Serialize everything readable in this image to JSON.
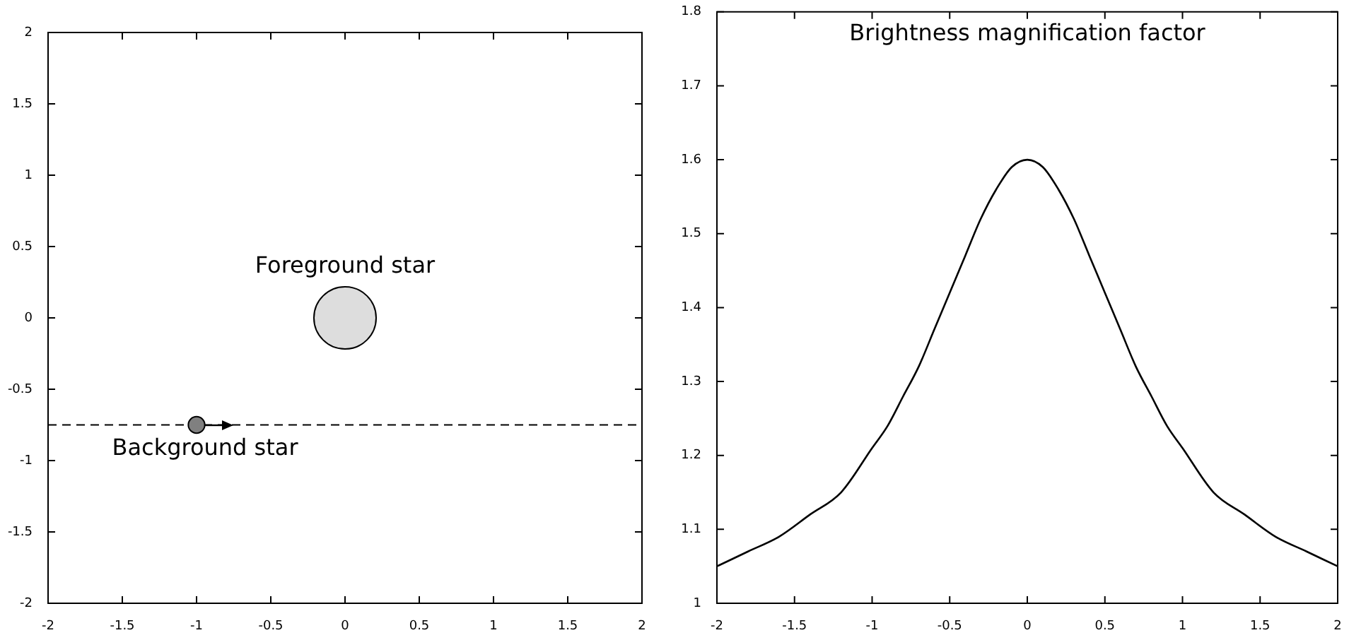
{
  "chart_data": [
    {
      "type": "bubble",
      "xlim": [
        -2,
        2
      ],
      "ylim": [
        -2,
        2
      ],
      "xticks": [
        -2,
        -1.5,
        -1,
        -0.5,
        0,
        0.5,
        1,
        1.5,
        2
      ],
      "yticks": [
        -2,
        -1.5,
        -1,
        -0.5,
        0,
        0.5,
        1,
        1.5,
        2
      ],
      "x": [
        0,
        -1
      ],
      "values": [
        0,
        -0.75
      ],
      "sizes": [
        1,
        0.07
      ],
      "colors": [
        "#dddddd",
        "#808080"
      ],
      "ref_lines": [
        {
          "axis": "y",
          "value": -0.75,
          "color": "#000000",
          "line_style": "dashed"
        }
      ],
      "annotations": [
        {
          "text": "Foreground star",
          "x": 0,
          "y": 0
        },
        {
          "text": "Background star",
          "x": -1,
          "y": -0.75
        }
      ]
    },
    {
      "type": "line",
      "title": "Brightness magnification factor",
      "xlim": [
        -2,
        2
      ],
      "ylim": [
        1,
        1.8
      ],
      "xticks": [
        -2,
        -1.5,
        -1,
        -0.5,
        0,
        0.5,
        1,
        1.5,
        2
      ],
      "yticks": [
        1,
        1.1,
        1.2,
        1.3,
        1.4,
        1.5,
        1.6,
        1.7,
        1.8
      ],
      "marker": "none",
      "line_style": "solid",
      "x": [
        -2,
        -1.8,
        -1.6,
        -1.4,
        -1.2,
        -1,
        -0.9,
        -0.8,
        -0.7,
        -0.6,
        -0.5,
        -0.4,
        -0.3,
        -0.2,
        -0.1,
        0,
        0.1,
        0.2,
        0.3,
        0.4,
        0.5,
        0.6,
        0.7,
        0.8,
        0.9,
        1,
        1.2,
        1.4,
        1.6,
        1.8,
        2
      ],
      "series": [
        {
          "color": "#000000",
          "values": [
            1.05,
            1.07,
            1.09,
            1.12,
            1.15,
            1.21,
            1.24,
            1.28,
            1.32,
            1.37,
            1.42,
            1.47,
            1.52,
            1.56,
            1.59,
            1.6,
            1.59,
            1.56,
            1.52,
            1.47,
            1.42,
            1.37,
            1.32,
            1.28,
            1.24,
            1.21,
            1.15,
            1.12,
            1.09,
            1.07,
            1.05
          ]
        }
      ]
    }
  ]
}
